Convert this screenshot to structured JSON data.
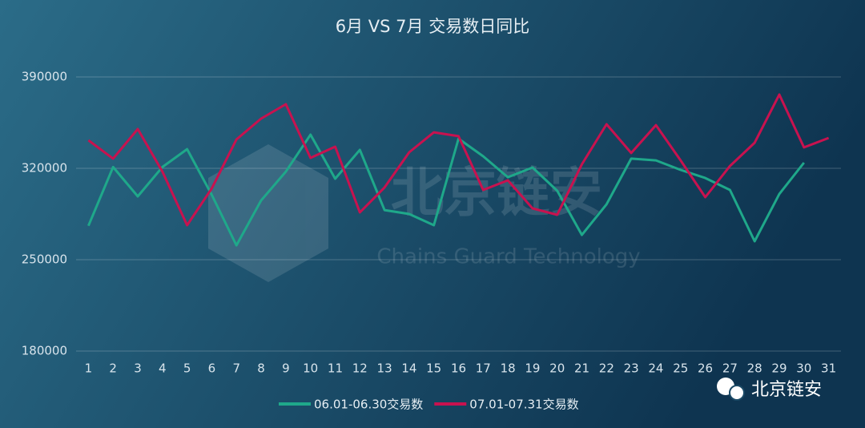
{
  "chart_data": {
    "type": "line",
    "title": "6月 VS 7月 交易数日同比",
    "categories": [
      "1",
      "2",
      "3",
      "4",
      "5",
      "6",
      "7",
      "8",
      "9",
      "10",
      "11",
      "12",
      "13",
      "14",
      "15",
      "16",
      "17",
      "18",
      "19",
      "20",
      "21",
      "22",
      "23",
      "24",
      "25",
      "26",
      "27",
      "28",
      "29",
      "30",
      "31"
    ],
    "series": [
      {
        "name": "06.01-06.30交易数",
        "color": "#1fa88a",
        "values": [
          276000,
          321000,
          298500,
          321000,
          334700,
          299700,
          261000,
          295400,
          317500,
          345800,
          312000,
          334100,
          288000,
          285000,
          276400,
          342700,
          329200,
          313200,
          320600,
          302800,
          269000,
          292400,
          327400,
          326100,
          318800,
          312600,
          303400,
          264100,
          300300,
          324300,
          null
        ]
      },
      {
        "name": "07.01-07.31交易数",
        "color": "#c8124f",
        "values": [
          341500,
          327400,
          350100,
          317500,
          276400,
          304600,
          342100,
          358100,
          369100,
          328000,
          336600,
          286200,
          305300,
          332300,
          347600,
          344600,
          303400,
          310800,
          289300,
          284400,
          323100,
          353800,
          331700,
          353100,
          326100,
          297900,
          321800,
          339600,
          376500,
          336000,
          343300
        ]
      }
    ],
    "ylim": [
      180000,
      390000
    ],
    "yticks": [
      180000,
      250000,
      320000,
      390000
    ],
    "grid": true,
    "legend": "bottom",
    "watermark": "北京链安",
    "watermark_subtitle": "Chains Guard Technology",
    "brand": "北京链安"
  }
}
